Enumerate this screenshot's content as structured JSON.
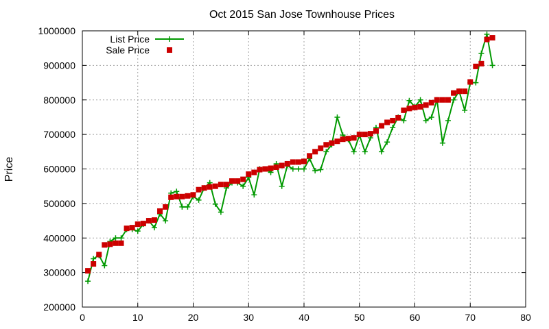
{
  "chart_data": {
    "type": "line",
    "title": "Oct 2015 San Jose Townhouse Prices",
    "xlabel": "",
    "ylabel": "Price",
    "xlim": [
      0,
      80
    ],
    "ylim": [
      200000,
      1000000
    ],
    "xticks": [
      "0",
      "10",
      "20",
      "30",
      "40",
      "50",
      "60",
      "70",
      "80"
    ],
    "yticks": [
      "200000",
      "300000",
      "400000",
      "500000",
      "600000",
      "700000",
      "800000",
      "900000",
      "1000000"
    ],
    "grid": true,
    "legend_position": "top-left",
    "x": [
      1,
      2,
      3,
      4,
      5,
      6,
      7,
      8,
      9,
      10,
      11,
      12,
      13,
      14,
      15,
      16,
      17,
      18,
      19,
      20,
      21,
      22,
      23,
      24,
      25,
      26,
      27,
      28,
      29,
      30,
      31,
      32,
      33,
      34,
      35,
      36,
      37,
      38,
      39,
      40,
      41,
      42,
      43,
      44,
      45,
      46,
      47,
      48,
      49,
      50,
      51,
      52,
      53,
      54,
      55,
      56,
      57,
      58,
      59,
      60,
      61,
      62,
      63,
      64,
      65,
      66,
      67,
      68,
      69,
      70,
      71,
      72,
      73,
      74
    ],
    "series": [
      {
        "name": "List Price",
        "style": "line+cross",
        "color": "#009900",
        "values": [
          275000,
          340000,
          350000,
          320000,
          390000,
          400000,
          400000,
          425000,
          425000,
          420000,
          440000,
          450000,
          430000,
          470000,
          450000,
          530000,
          535000,
          490000,
          490000,
          520000,
          510000,
          545000,
          560000,
          498000,
          475000,
          545000,
          560000,
          560000,
          550000,
          575000,
          525000,
          600000,
          600000,
          590000,
          615000,
          550000,
          610000,
          600000,
          600000,
          600000,
          630000,
          595000,
          598000,
          650000,
          670000,
          750000,
          698000,
          685000,
          650000,
          698000,
          650000,
          690000,
          720000,
          650000,
          678000,
          720000,
          750000,
          740000,
          798000,
          780000,
          800000,
          740000,
          750000,
          800000,
          675000,
          740000,
          800000,
          825000,
          770000,
          850000,
          850000,
          935000,
          990000,
          900000
        ]
      },
      {
        "name": "Sale Price",
        "style": "square",
        "color": "#cc0000",
        "values": [
          305000,
          325000,
          352000,
          380000,
          382000,
          385000,
          385000,
          428000,
          430000,
          440000,
          442000,
          450000,
          452000,
          478000,
          490000,
          518000,
          520000,
          520000,
          522000,
          525000,
          540000,
          545000,
          548000,
          550000,
          555000,
          555000,
          565000,
          565000,
          570000,
          585000,
          590000,
          598000,
          600000,
          602000,
          605000,
          610000,
          615000,
          620000,
          620000,
          622000,
          638000,
          650000,
          660000,
          670000,
          675000,
          680000,
          686000,
          688000,
          690000,
          700000,
          700000,
          702000,
          710000,
          725000,
          735000,
          740000,
          748000,
          770000,
          775000,
          778000,
          780000,
          785000,
          792000,
          800000,
          800000,
          800000,
          820000,
          825000,
          825000,
          852000,
          897000,
          905000,
          975000,
          980000
        ]
      }
    ]
  }
}
